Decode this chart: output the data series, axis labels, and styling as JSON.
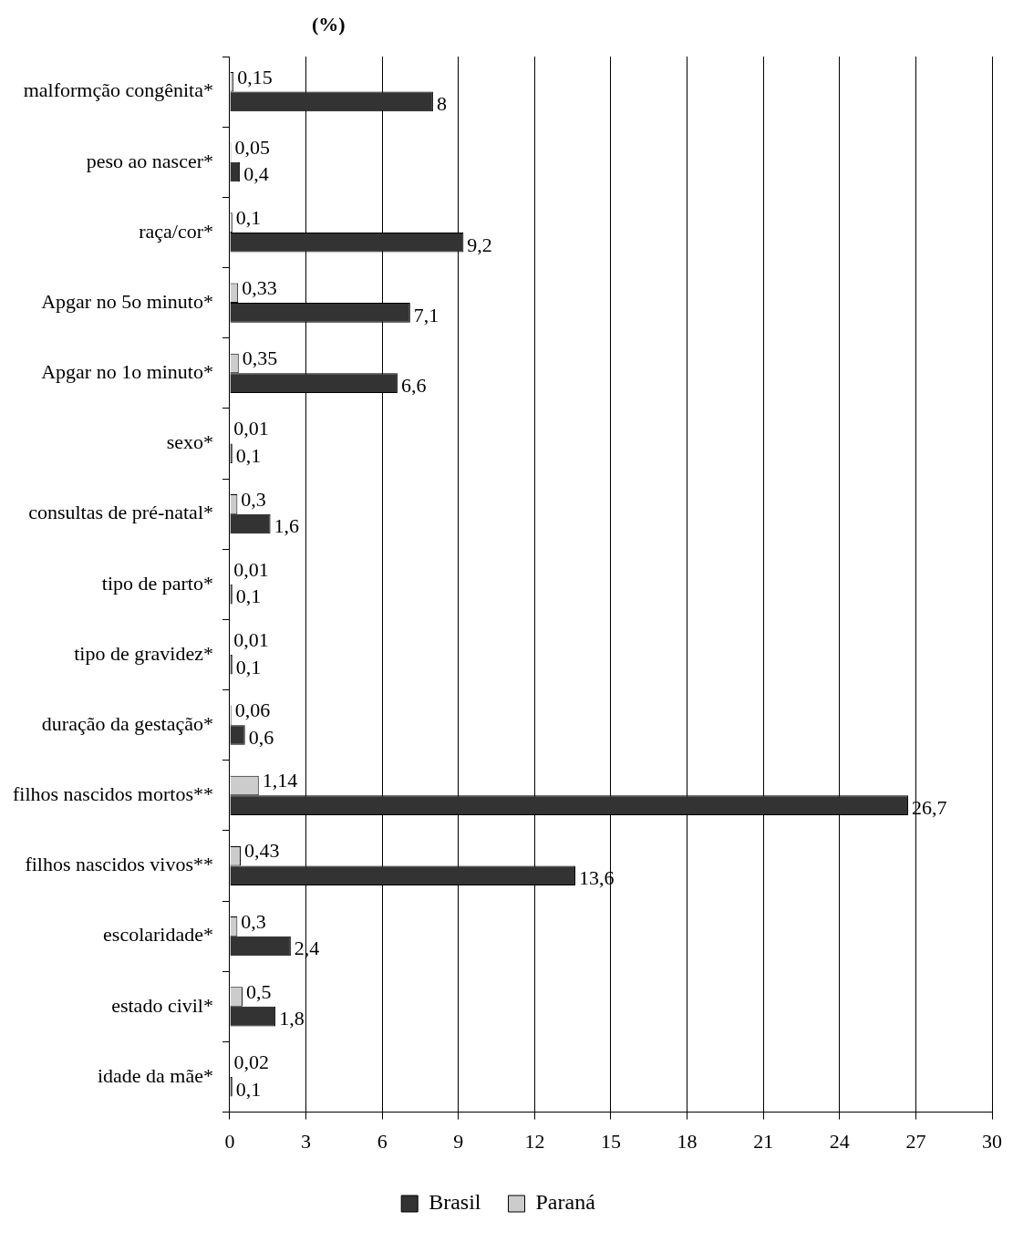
{
  "chart_data": {
    "type": "bar",
    "orientation": "horizontal",
    "xlabel": "(%)",
    "categories": [
      "malformção congênita*",
      "peso ao nascer*",
      "raça/cor*",
      "Apgar no 5o minuto*",
      "Apgar no 1o minuto*",
      "sexo*",
      "consultas de pré-natal*",
      "tipo de parto*",
      "tipo de gravidez*",
      "duração da gestação*",
      "filhos nascidos mortos**",
      "filhos nascidos vivos**",
      "escolaridade*",
      "estado civil*",
      "idade da mãe*"
    ],
    "series": [
      {
        "name": "Brasil",
        "color": "#333333",
        "values": [
          8,
          0.4,
          9.2,
          7.1,
          6.6,
          0.1,
          1.6,
          0.1,
          0.1,
          0.6,
          26.7,
          13.6,
          2.4,
          1.8,
          0.1
        ],
        "value_labels": [
          "8",
          "0,4",
          "9,2",
          "7,1",
          "6,6",
          "0,1",
          "1,6",
          "0,1",
          "0,1",
          "0,6",
          "26,7",
          "13,6",
          "2,4",
          "1,8",
          "0,1"
        ]
      },
      {
        "name": "Paraná",
        "color": "#cccccc",
        "values": [
          0.15,
          0.05,
          0.1,
          0.33,
          0.35,
          0.01,
          0.3,
          0.01,
          0.01,
          0.06,
          1.14,
          0.43,
          0.3,
          0.5,
          0.02
        ],
        "value_labels": [
          "0,15",
          "0,05",
          "0,1",
          "0,33",
          "0,35",
          "0,01",
          "0,3",
          "0,01",
          "0,01",
          "0,06",
          "1,14",
          "0,43",
          "0,3",
          "0,5",
          "0,02"
        ]
      }
    ],
    "xlim": [
      0,
      30
    ],
    "xticks": [
      0,
      3,
      6,
      9,
      12,
      15,
      18,
      21,
      24,
      27,
      30
    ],
    "grid": "x",
    "legend": "bottom"
  }
}
